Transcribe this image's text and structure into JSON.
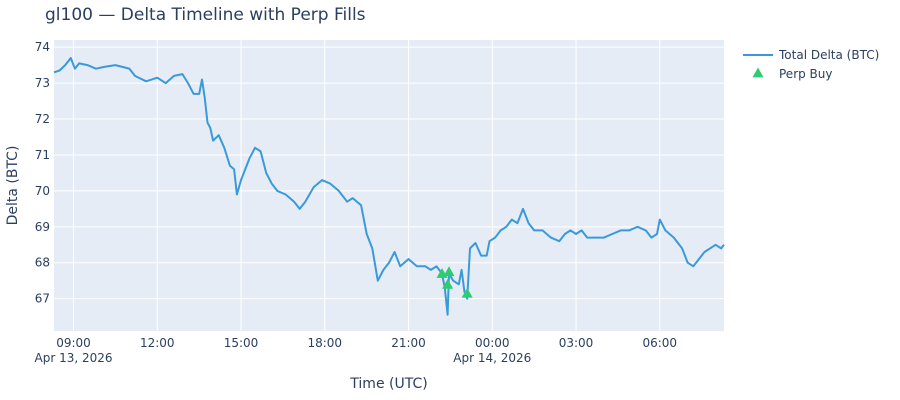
{
  "chart_data": {
    "type": "line",
    "title": "gl100 — Delta Timeline with Perp Fills",
    "xlabel": "Time (UTC)",
    "ylabel": "Delta (BTC)",
    "x_range_hours": [
      8.3,
      32.3
    ],
    "ylim": [
      66.1,
      74.2
    ],
    "x_ticks": [
      {
        "hour": 9,
        "label": "09:00",
        "sub": "Apr 13, 2026"
      },
      {
        "hour": 12,
        "label": "12:00",
        "sub": ""
      },
      {
        "hour": 15,
        "label": "15:00",
        "sub": ""
      },
      {
        "hour": 18,
        "label": "18:00",
        "sub": ""
      },
      {
        "hour": 21,
        "label": "21:00",
        "sub": ""
      },
      {
        "hour": 24,
        "label": "00:00",
        "sub": "Apr 14, 2026"
      },
      {
        "hour": 27,
        "label": "03:00",
        "sub": ""
      },
      {
        "hour": 30,
        "label": "06:00",
        "sub": ""
      }
    ],
    "y_ticks": [
      67,
      68,
      69,
      70,
      71,
      72,
      73,
      74
    ],
    "colors": {
      "line": "#3a9ad9",
      "marker": "#2ecc71",
      "plot_bg": "#e5ecf6",
      "text": "#2a3f5f"
    },
    "legend": {
      "position": "top-right",
      "entries": [
        "Total Delta (BTC)",
        "Perp Buy"
      ]
    },
    "series": [
      {
        "name": "Total Delta (BTC)",
        "kind": "line",
        "points": [
          [
            8.3,
            73.3
          ],
          [
            8.5,
            73.35
          ],
          [
            8.7,
            73.5
          ],
          [
            8.9,
            73.7
          ],
          [
            9.05,
            73.4
          ],
          [
            9.2,
            73.55
          ],
          [
            9.5,
            73.5
          ],
          [
            9.8,
            73.4
          ],
          [
            10.1,
            73.45
          ],
          [
            10.5,
            73.5
          ],
          [
            11.0,
            73.4
          ],
          [
            11.2,
            73.2
          ],
          [
            11.6,
            73.05
          ],
          [
            12.0,
            73.15
          ],
          [
            12.3,
            73.0
          ],
          [
            12.6,
            73.2
          ],
          [
            12.9,
            73.25
          ],
          [
            13.1,
            73.0
          ],
          [
            13.3,
            72.7
          ],
          [
            13.5,
            72.7
          ],
          [
            13.6,
            73.1
          ],
          [
            13.7,
            72.6
          ],
          [
            13.8,
            71.9
          ],
          [
            13.9,
            71.75
          ],
          [
            14.0,
            71.4
          ],
          [
            14.2,
            71.55
          ],
          [
            14.4,
            71.2
          ],
          [
            14.6,
            70.7
          ],
          [
            14.75,
            70.6
          ],
          [
            14.85,
            69.9
          ],
          [
            15.0,
            70.3
          ],
          [
            15.3,
            70.9
          ],
          [
            15.5,
            71.2
          ],
          [
            15.7,
            71.1
          ],
          [
            15.9,
            70.5
          ],
          [
            16.1,
            70.2
          ],
          [
            16.3,
            70.0
          ],
          [
            16.6,
            69.9
          ],
          [
            16.9,
            69.7
          ],
          [
            17.1,
            69.5
          ],
          [
            17.3,
            69.7
          ],
          [
            17.6,
            70.1
          ],
          [
            17.9,
            70.3
          ],
          [
            18.2,
            70.2
          ],
          [
            18.5,
            70.0
          ],
          [
            18.8,
            69.7
          ],
          [
            19.0,
            69.8
          ],
          [
            19.3,
            69.6
          ],
          [
            19.5,
            68.8
          ],
          [
            19.7,
            68.4
          ],
          [
            19.9,
            67.5
          ],
          [
            20.1,
            67.8
          ],
          [
            20.3,
            68.0
          ],
          [
            20.5,
            68.3
          ],
          [
            20.7,
            67.9
          ],
          [
            21.0,
            68.1
          ],
          [
            21.3,
            67.9
          ],
          [
            21.6,
            67.9
          ],
          [
            21.8,
            67.8
          ],
          [
            22.0,
            67.9
          ],
          [
            22.2,
            67.7
          ],
          [
            22.3,
            67.3
          ],
          [
            22.4,
            66.55
          ],
          [
            22.45,
            67.7
          ],
          [
            22.6,
            67.5
          ],
          [
            22.8,
            67.4
          ],
          [
            22.9,
            67.8
          ],
          [
            23.0,
            67.2
          ],
          [
            23.1,
            67.0
          ],
          [
            23.2,
            68.4
          ],
          [
            23.4,
            68.55
          ],
          [
            23.6,
            68.2
          ],
          [
            23.8,
            68.2
          ],
          [
            23.9,
            68.6
          ],
          [
            24.1,
            68.7
          ],
          [
            24.3,
            68.9
          ],
          [
            24.5,
            69.0
          ],
          [
            24.7,
            69.2
          ],
          [
            24.9,
            69.1
          ],
          [
            25.1,
            69.5
          ],
          [
            25.3,
            69.1
          ],
          [
            25.5,
            68.9
          ],
          [
            25.8,
            68.9
          ],
          [
            26.1,
            68.7
          ],
          [
            26.4,
            68.6
          ],
          [
            26.6,
            68.8
          ],
          [
            26.8,
            68.9
          ],
          [
            27.0,
            68.8
          ],
          [
            27.2,
            68.9
          ],
          [
            27.4,
            68.7
          ],
          [
            27.7,
            68.7
          ],
          [
            28.0,
            68.7
          ],
          [
            28.3,
            68.8
          ],
          [
            28.6,
            68.9
          ],
          [
            28.9,
            68.9
          ],
          [
            29.2,
            69.0
          ],
          [
            29.5,
            68.9
          ],
          [
            29.7,
            68.7
          ],
          [
            29.9,
            68.8
          ],
          [
            30.0,
            69.2
          ],
          [
            30.2,
            68.9
          ],
          [
            30.5,
            68.7
          ],
          [
            30.8,
            68.4
          ],
          [
            31.0,
            68.0
          ],
          [
            31.2,
            67.9
          ],
          [
            31.4,
            68.1
          ],
          [
            31.6,
            68.3
          ],
          [
            31.8,
            68.4
          ],
          [
            32.0,
            68.5
          ],
          [
            32.2,
            68.4
          ],
          [
            32.3,
            68.5
          ]
        ]
      },
      {
        "name": "Perp Buy",
        "kind": "markers",
        "points": [
          [
            22.2,
            67.7
          ],
          [
            22.4,
            67.4
          ],
          [
            22.45,
            67.75
          ],
          [
            23.1,
            67.15
          ]
        ]
      }
    ]
  }
}
